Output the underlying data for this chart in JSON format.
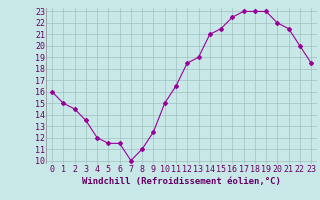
{
  "x": [
    0,
    1,
    2,
    3,
    4,
    5,
    6,
    7,
    8,
    9,
    10,
    11,
    12,
    13,
    14,
    15,
    16,
    17,
    18,
    19,
    20,
    21,
    22,
    23
  ],
  "y": [
    16,
    15,
    14.5,
    13.5,
    12,
    11.5,
    11.5,
    10,
    11,
    12.5,
    15,
    16.5,
    18.5,
    19,
    21,
    21.5,
    22.5,
    23,
    23,
    23,
    22,
    21.5,
    20,
    18.5
  ],
  "line_color": "#990099",
  "marker": "D",
  "marker_size": 2,
  "bg_color": "#c8e8e8",
  "grid_color": "#a0c0c0",
  "xlabel": "Windchill (Refroidissement éolien,°C)",
  "xlabel_color": "#660066",
  "xlabel_fontsize": 6.5,
  "tick_color": "#660066",
  "tick_fontsize": 6,
  "ylim": [
    10,
    23
  ],
  "xlim": [
    0,
    23
  ],
  "yticks": [
    10,
    11,
    12,
    13,
    14,
    15,
    16,
    17,
    18,
    19,
    20,
    21,
    22,
    23
  ],
  "xticks": [
    0,
    1,
    2,
    3,
    4,
    5,
    6,
    7,
    8,
    9,
    10,
    11,
    12,
    13,
    14,
    15,
    16,
    17,
    18,
    19,
    20,
    21,
    22,
    23
  ]
}
